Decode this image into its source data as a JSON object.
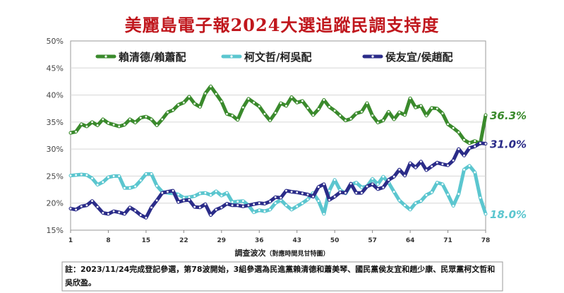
{
  "title": "美麗島電子報2024大選追蹤民調支持度",
  "note": "註：2023/11/24完成登記參選，第78波開始，3組參選為民進黨賴清德和蕭美琴、國民黨侯友宜和趙少康、民眾黨柯文哲和吳欣盈。",
  "chart_data": {
    "type": "line",
    "title": "美麗島電子報2024大選追蹤民調支持度",
    "xlabel": "調查波次",
    "xlabel_sub": "（對應時間見甘特圖）",
    "ylabel": "",
    "xlim": [
      1,
      78
    ],
    "ylim": [
      15,
      50
    ],
    "x_ticks": [
      1,
      8,
      15,
      22,
      29,
      36,
      43,
      50,
      57,
      64,
      71,
      78
    ],
    "y_ticks": [
      15,
      20,
      25,
      30,
      35,
      40,
      45,
      50
    ],
    "y_tick_labels": [
      "15%",
      "20%",
      "25%",
      "30%",
      "35%",
      "40%",
      "45%",
      "50%"
    ],
    "grid": true,
    "legend_position": "top",
    "series": [
      {
        "name": "賴清德/賴蕭配",
        "color": "#3a8a2c",
        "end_label": "36.3%",
        "values": [
          33.0,
          33.2,
          34.6,
          34.2,
          35.0,
          34.4,
          35.5,
          34.8,
          34.5,
          34.2,
          34.5,
          35.5,
          34.9,
          35.8,
          36.0,
          35.5,
          34.4,
          35.5,
          36.8,
          37.2,
          38.2,
          38.6,
          39.7,
          38.4,
          37.8,
          40.3,
          41.6,
          40.2,
          38.8,
          36.5,
          36.2,
          35.4,
          37.7,
          39.3,
          38.6,
          37.9,
          36.5,
          35.3,
          36.7,
          38.5,
          38.0,
          39.6,
          38.6,
          38.9,
          37.6,
          36.3,
          37.4,
          39.1,
          37.8,
          37.1,
          36.2,
          35.3,
          35.6,
          36.6,
          36.9,
          38.5,
          36.2,
          34.9,
          35.3,
          36.9,
          35.5,
          36.8,
          36.3,
          39.4,
          37.7,
          38.0,
          36.2,
          37.6,
          37.5,
          36.6,
          34.6,
          33.9,
          33.1,
          31.7,
          31.1,
          31.5,
          31.0,
          36.3
        ]
      },
      {
        "name": "柯文哲/柯吳配",
        "color": "#5bc6cf",
        "end_label": "18.0%",
        "values": [
          25.1,
          25.2,
          25.3,
          25.2,
          24.6,
          23.4,
          23.9,
          24.8,
          25.0,
          25.0,
          22.8,
          22.8,
          23.1,
          24.2,
          25.4,
          25.4,
          23.2,
          22.1,
          21.9,
          21.8,
          21.6,
          21.0,
          21.1,
          21.3,
          21.8,
          21.9,
          21.5,
          22.2,
          21.4,
          21.9,
          20.2,
          20.3,
          20.4,
          19.6,
          18.3,
          18.7,
          18.5,
          18.8,
          20.0,
          20.6,
          19.6,
          18.8,
          19.4,
          20.0,
          20.7,
          21.9,
          20.4,
          18.0,
          22.3,
          24.3,
          22.4,
          21.8,
          23.4,
          23.8,
          22.9,
          23.1,
          24.5,
          23.5,
          24.9,
          23.8,
          22.1,
          20.5,
          19.6,
          18.8,
          20.0,
          20.4,
          21.5,
          22.0,
          23.8,
          23.5,
          21.6,
          19.5,
          21.7,
          26.2,
          26.9,
          25.7,
          21.0,
          18.0
        ]
      },
      {
        "name": "侯友宜/侯趙配",
        "color": "#2b2c89",
        "end_label": "31.0%",
        "values": [
          19.0,
          18.8,
          19.4,
          19.6,
          20.4,
          19.3,
          18.2,
          18.0,
          18.5,
          18.3,
          18.0,
          19.2,
          18.6,
          17.8,
          17.3,
          19.2,
          20.5,
          21.9,
          22.1,
          22.3,
          20.2,
          20.5,
          20.6,
          19.3,
          19.2,
          19.8,
          17.8,
          18.8,
          19.2,
          19.9,
          19.6,
          19.6,
          19.4,
          19.6,
          19.8,
          20.0,
          19.9,
          20.3,
          21.1,
          21.0,
          22.3,
          22.1,
          22.0,
          21.8,
          21.6,
          21.2,
          23.0,
          23.5,
          20.6,
          21.2,
          22.0,
          21.9,
          23.6,
          21.9,
          21.9,
          23.1,
          23.5,
          22.6,
          22.9,
          24.3,
          24.9,
          26.2,
          25.1,
          27.4,
          26.6,
          27.7,
          26.1,
          26.8,
          27.5,
          27.2,
          27.0,
          27.9,
          30.0,
          28.8,
          30.2,
          30.5,
          31.1,
          31.0
        ]
      }
    ]
  }
}
